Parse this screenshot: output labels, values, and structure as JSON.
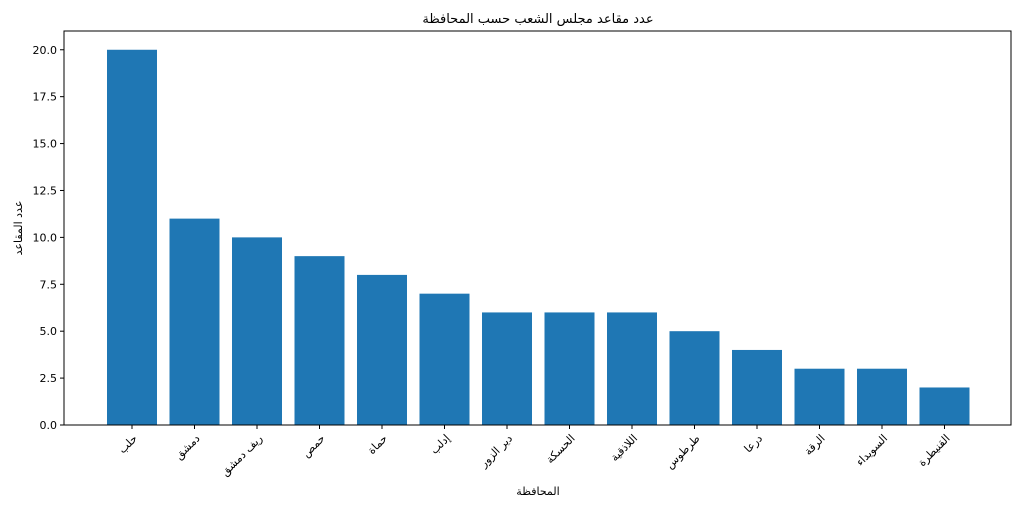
{
  "chart_data": {
    "type": "bar",
    "title": "عدد مقاعد مجلس الشعب حسب المحافظة",
    "xlabel": "المحافظة",
    "ylabel": "عدد المقاعد",
    "categories": [
      "حلب",
      "دمشق",
      "ريف دمشق",
      "حمص",
      "حماة",
      "إدلب",
      "دير الزور",
      "الحسكة",
      "اللاذقية",
      "طرطوس",
      "درعا",
      "الرقة",
      "السويداء",
      "القنيطرة"
    ],
    "values": [
      20,
      11,
      10,
      9,
      8,
      7,
      6,
      6,
      6,
      5,
      4,
      3,
      3,
      2
    ],
    "ylim": [
      0,
      21
    ],
    "yticks": [
      "0.0",
      "2.5",
      "5.0",
      "7.5",
      "10.0",
      "12.5",
      "15.0",
      "17.5",
      "20.0"
    ],
    "bar_color": "#1f77b4",
    "grid": false,
    "legend": "none"
  }
}
